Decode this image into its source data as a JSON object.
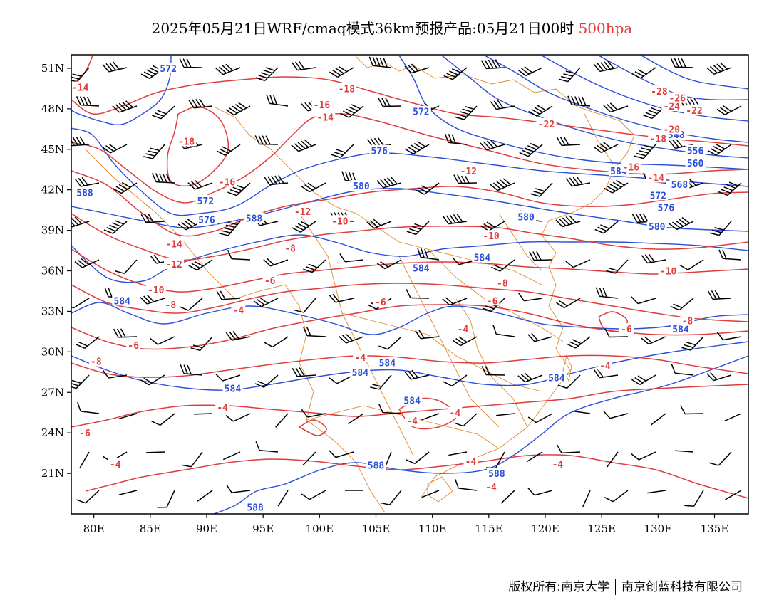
{
  "title": {
    "main": "2025年05月21日WRF/cmaq模式36km预报产品:05月21日00时",
    "level": "500hpa"
  },
  "footer": {
    "left": "版权所有:南京大学",
    "right": "南京创蓝科技有限公司"
  },
  "colors": {
    "temperature": "#e03c3c",
    "height": "#2a4fd8",
    "boundary": "#e08a2c",
    "wind": "#000000"
  },
  "chart_data": {
    "type": "map",
    "x_ticks": [
      "80E",
      "85E",
      "90E",
      "95E",
      "100E",
      "105E",
      "110E",
      "115E",
      "120E",
      "125E",
      "130E",
      "135E"
    ],
    "y_ticks": [
      "51N",
      "48N",
      "45N",
      "42N",
      "39N",
      "36N",
      "33N",
      "30N",
      "27N",
      "24N",
      "21N"
    ],
    "lon_range": [
      78,
      138
    ],
    "lat_range": [
      18,
      52
    ],
    "temp_labels": [
      {
        "t": "-14",
        "lon": 78.8,
        "lat": 49.6
      },
      {
        "t": "-18",
        "lon": 102.4,
        "lat": 49.5
      },
      {
        "t": "-16",
        "lon": 100.2,
        "lat": 48.3
      },
      {
        "t": "-14",
        "lon": 100.5,
        "lat": 47.4
      },
      {
        "t": "-18",
        "lon": 88.2,
        "lat": 45.6
      },
      {
        "t": "-16",
        "lon": 91.8,
        "lat": 42.6
      },
      {
        "t": "-12",
        "lon": 98.5,
        "lat": 40.4
      },
      {
        "t": "-10",
        "lon": 101.8,
        "lat": 39.7
      },
      {
        "t": "-14",
        "lon": 87.1,
        "lat": 38.0
      },
      {
        "t": "-8",
        "lon": 97.4,
        "lat": 37.7
      },
      {
        "t": "-12",
        "lon": 87.1,
        "lat": 36.5
      },
      {
        "t": "-10",
        "lon": 85.5,
        "lat": 34.6
      },
      {
        "t": "-8",
        "lon": 86.8,
        "lat": 33.5
      },
      {
        "t": "-6",
        "lon": 95.6,
        "lat": 35.3
      },
      {
        "t": "-4",
        "lon": 92.8,
        "lat": 33.1
      },
      {
        "t": "-6",
        "lon": 83.5,
        "lat": 30.5
      },
      {
        "t": "-8",
        "lon": 80.2,
        "lat": 29.3
      },
      {
        "t": "-6",
        "lon": 105.4,
        "lat": 33.7
      },
      {
        "t": "-4",
        "lon": 103.6,
        "lat": 29.6
      },
      {
        "t": "-4",
        "lon": 91.4,
        "lat": 25.9
      },
      {
        "t": "-6",
        "lon": 79.2,
        "lat": 24.0
      },
      {
        "t": "-4",
        "lon": 81.9,
        "lat": 21.7
      },
      {
        "t": "-12",
        "lon": 113.2,
        "lat": 43.4
      },
      {
        "t": "-10",
        "lon": 115.2,
        "lat": 38.6
      },
      {
        "t": "-8",
        "lon": 116.2,
        "lat": 35.1
      },
      {
        "t": "-6",
        "lon": 115.3,
        "lat": 33.8
      },
      {
        "t": "-4",
        "lon": 112.7,
        "lat": 31.7
      },
      {
        "t": "-4",
        "lon": 112.0,
        "lat": 25.5
      },
      {
        "t": "-4",
        "lon": 108.2,
        "lat": 24.9
      },
      {
        "t": "-4",
        "lon": 113.4,
        "lat": 21.9
      },
      {
        "t": "-4",
        "lon": 115.2,
        "lat": 20.0
      },
      {
        "t": "-4",
        "lon": 121.1,
        "lat": 21.7
      },
      {
        "t": "-4",
        "lon": 125.3,
        "lat": 29.0
      },
      {
        "t": "-6",
        "lon": 127.2,
        "lat": 31.7
      },
      {
        "t": "-8",
        "lon": 132.6,
        "lat": 32.3
      },
      {
        "t": "-10",
        "lon": 130.9,
        "lat": 36.0
      },
      {
        "t": "-22",
        "lon": 120.1,
        "lat": 46.9
      },
      {
        "t": "-16",
        "lon": 127.6,
        "lat": 43.7
      },
      {
        "t": "-14",
        "lon": 129.8,
        "lat": 42.9
      },
      {
        "t": "-18",
        "lon": 130.0,
        "lat": 45.8
      },
      {
        "t": "-20",
        "lon": 131.2,
        "lat": 46.5
      },
      {
        "t": "-22",
        "lon": 133.2,
        "lat": 47.9
      },
      {
        "t": "-24",
        "lon": 131.2,
        "lat": 48.2
      },
      {
        "t": "-26",
        "lon": 131.7,
        "lat": 48.8
      },
      {
        "t": "-28",
        "lon": 130.1,
        "lat": 49.3
      }
    ],
    "height_labels": [
      {
        "t": "572",
        "lon": 86.6,
        "lat": 51.0
      },
      {
        "t": "572",
        "lon": 109.0,
        "lat": 47.8
      },
      {
        "t": "576",
        "lon": 105.3,
        "lat": 44.9
      },
      {
        "t": "580",
        "lon": 103.7,
        "lat": 42.3
      },
      {
        "t": "588",
        "lon": 79.2,
        "lat": 41.8
      },
      {
        "t": "572",
        "lon": 89.9,
        "lat": 41.2
      },
      {
        "t": "576",
        "lon": 90.0,
        "lat": 39.8
      },
      {
        "t": "588",
        "lon": 94.2,
        "lat": 39.9
      },
      {
        "t": "580",
        "lon": 118.3,
        "lat": 40.0
      },
      {
        "t": "584",
        "lon": 114.4,
        "lat": 37.0
      },
      {
        "t": "584",
        "lon": 109.0,
        "lat": 36.2
      },
      {
        "t": "584",
        "lon": 82.5,
        "lat": 33.8
      },
      {
        "t": "584",
        "lon": 103.6,
        "lat": 28.5
      },
      {
        "t": "584",
        "lon": 106.0,
        "lat": 29.2
      },
      {
        "t": "584",
        "lon": 92.3,
        "lat": 27.3
      },
      {
        "t": "584",
        "lon": 108.2,
        "lat": 26.4
      },
      {
        "t": "584",
        "lon": 121.0,
        "lat": 28.1
      },
      {
        "t": "588",
        "lon": 105.0,
        "lat": 21.6
      },
      {
        "t": "588",
        "lon": 115.7,
        "lat": 21.0
      },
      {
        "t": "588",
        "lon": 94.3,
        "lat": 18.5
      },
      {
        "t": "584",
        "lon": 132.0,
        "lat": 31.7
      },
      {
        "t": "580",
        "lon": 129.9,
        "lat": 39.3
      },
      {
        "t": "576",
        "lon": 130.7,
        "lat": 40.7
      },
      {
        "t": "572",
        "lon": 130.0,
        "lat": 41.6
      },
      {
        "t": "568",
        "lon": 131.9,
        "lat": 42.4
      },
      {
        "t": "584",
        "lon": 126.5,
        "lat": 43.4
      },
      {
        "t": "560",
        "lon": 133.3,
        "lat": 44.0
      },
      {
        "t": "556",
        "lon": 133.3,
        "lat": 44.9
      },
      {
        "t": "548",
        "lon": 131.6,
        "lat": 46.1
      }
    ]
  }
}
